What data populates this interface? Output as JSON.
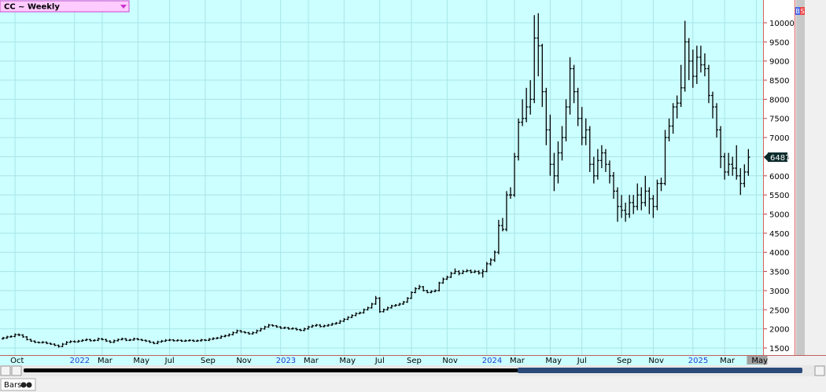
{
  "chart_data": {
    "type": "ohlc",
    "title": "CC ~ Weekly",
    "buttons": [
      "B",
      "S"
    ],
    "bottom_tab": "Bars",
    "grid": true,
    "color": "#000000",
    "ylim": [
      1315,
      10595
    ],
    "yticks": [
      1500,
      2000,
      2500,
      3000,
      3500,
      4000,
      4500,
      5000,
      5500,
      6000,
      6500,
      7000,
      7500,
      8000,
      8500,
      9000,
      9500,
      10000
    ],
    "xlim": [
      -0.79,
      191.7
    ],
    "xticks": [
      {
        "value": 3,
        "label": "Oct"
      },
      {
        "value": 18,
        "label": "2022"
      },
      {
        "value": 25,
        "label": "Mar"
      },
      {
        "value": 34,
        "label": "May"
      },
      {
        "value": 42,
        "label": "Jul"
      },
      {
        "value": 51,
        "label": "Sep"
      },
      {
        "value": 60,
        "label": "Nov"
      },
      {
        "value": 70,
        "label": "2023"
      },
      {
        "value": 77,
        "label": "Mar"
      },
      {
        "value": 86,
        "label": "May"
      },
      {
        "value": 95,
        "label": "Jul"
      },
      {
        "value": 103,
        "label": "Sep"
      },
      {
        "value": 112,
        "label": "Nov"
      },
      {
        "value": 122,
        "label": "2024"
      },
      {
        "value": 129,
        "label": "Mar"
      },
      {
        "value": 138,
        "label": "May"
      },
      {
        "value": 146,
        "label": "Jul"
      },
      {
        "value": 156,
        "label": "Sep"
      },
      {
        "value": 164,
        "label": "Nov"
      },
      {
        "value": 174,
        "label": "2025"
      },
      {
        "value": 182,
        "label": "Mar"
      },
      {
        "value": 190,
        "label": "May"
      }
    ],
    "ohlc": [
      [
        1740,
        1790,
        1720,
        1760
      ],
      [
        1760,
        1820,
        1740,
        1790
      ],
      [
        1790,
        1830,
        1770,
        1800
      ],
      [
        1800,
        1880,
        1780,
        1850
      ],
      [
        1850,
        1880,
        1810,
        1840
      ],
      [
        1840,
        1860,
        1770,
        1790
      ],
      [
        1790,
        1810,
        1700,
        1720
      ],
      [
        1720,
        1740,
        1660,
        1680
      ],
      [
        1680,
        1700,
        1630,
        1650
      ],
      [
        1650,
        1670,
        1620,
        1640
      ],
      [
        1640,
        1680,
        1620,
        1650
      ],
      [
        1650,
        1670,
        1600,
        1620
      ],
      [
        1620,
        1640,
        1580,
        1600
      ],
      [
        1600,
        1620,
        1550,
        1570
      ],
      [
        1570,
        1590,
        1510,
        1540
      ],
      [
        1540,
        1630,
        1520,
        1600
      ],
      [
        1600,
        1680,
        1580,
        1650
      ],
      [
        1650,
        1700,
        1630,
        1670
      ],
      [
        1670,
        1700,
        1640,
        1660
      ],
      [
        1660,
        1710,
        1640,
        1680
      ],
      [
        1680,
        1730,
        1660,
        1700
      ],
      [
        1700,
        1750,
        1680,
        1720
      ],
      [
        1720,
        1740,
        1670,
        1690
      ],
      [
        1690,
        1730,
        1670,
        1700
      ],
      [
        1700,
        1770,
        1680,
        1740
      ],
      [
        1740,
        1760,
        1700,
        1720
      ],
      [
        1720,
        1740,
        1660,
        1680
      ],
      [
        1680,
        1700,
        1630,
        1650
      ],
      [
        1650,
        1720,
        1630,
        1690
      ],
      [
        1690,
        1750,
        1670,
        1720
      ],
      [
        1720,
        1770,
        1700,
        1740
      ],
      [
        1740,
        1760,
        1680,
        1700
      ],
      [
        1700,
        1740,
        1680,
        1710
      ],
      [
        1710,
        1770,
        1690,
        1740
      ],
      [
        1740,
        1760,
        1700,
        1720
      ],
      [
        1720,
        1740,
        1680,
        1700
      ],
      [
        1700,
        1720,
        1660,
        1680
      ],
      [
        1680,
        1700,
        1630,
        1650
      ],
      [
        1650,
        1670,
        1600,
        1620
      ],
      [
        1620,
        1690,
        1600,
        1660
      ],
      [
        1660,
        1710,
        1640,
        1680
      ],
      [
        1680,
        1730,
        1660,
        1700
      ],
      [
        1700,
        1740,
        1680,
        1710
      ],
      [
        1710,
        1730,
        1670,
        1690
      ],
      [
        1690,
        1730,
        1670,
        1700
      ],
      [
        1700,
        1720,
        1660,
        1680
      ],
      [
        1680,
        1720,
        1660,
        1690
      ],
      [
        1690,
        1730,
        1670,
        1700
      ],
      [
        1700,
        1720,
        1660,
        1680
      ],
      [
        1680,
        1720,
        1660,
        1690
      ],
      [
        1690,
        1740,
        1670,
        1710
      ],
      [
        1710,
        1730,
        1680,
        1700
      ],
      [
        1700,
        1760,
        1680,
        1730
      ],
      [
        1730,
        1780,
        1710,
        1750
      ],
      [
        1750,
        1790,
        1730,
        1760
      ],
      [
        1760,
        1830,
        1740,
        1800
      ],
      [
        1800,
        1850,
        1780,
        1820
      ],
      [
        1820,
        1880,
        1800,
        1850
      ],
      [
        1850,
        1930,
        1830,
        1900
      ],
      [
        1900,
        1980,
        1880,
        1950
      ],
      [
        1950,
        1970,
        1900,
        1920
      ],
      [
        1920,
        1940,
        1880,
        1900
      ],
      [
        1900,
        1920,
        1850,
        1870
      ],
      [
        1870,
        1930,
        1850,
        1900
      ],
      [
        1900,
        1980,
        1880,
        1950
      ],
      [
        1950,
        2030,
        1930,
        2000
      ],
      [
        2000,
        2080,
        1980,
        2050
      ],
      [
        2050,
        2130,
        2030,
        2100
      ],
      [
        2100,
        2120,
        2060,
        2080
      ],
      [
        2080,
        2100,
        2030,
        2050
      ],
      [
        2050,
        2070,
        2000,
        2020
      ],
      [
        2020,
        2060,
        2000,
        2030
      ],
      [
        2030,
        2050,
        1980,
        2000
      ],
      [
        2000,
        2040,
        1980,
        2010
      ],
      [
        2010,
        2030,
        1960,
        1980
      ],
      [
        1980,
        2000,
        1940,
        1960
      ],
      [
        1960,
        2030,
        1940,
        2000
      ],
      [
        2000,
        2080,
        1980,
        2050
      ],
      [
        2050,
        2110,
        2030,
        2080
      ],
      [
        2080,
        2130,
        2060,
        2100
      ],
      [
        2100,
        2120,
        2040,
        2060
      ],
      [
        2060,
        2110,
        2040,
        2080
      ],
      [
        2080,
        2130,
        2060,
        2100
      ],
      [
        2100,
        2160,
        2080,
        2130
      ],
      [
        2130,
        2180,
        2110,
        2150
      ],
      [
        2150,
        2230,
        2130,
        2200
      ],
      [
        2200,
        2280,
        2180,
        2250
      ],
      [
        2250,
        2330,
        2230,
        2300
      ],
      [
        2300,
        2380,
        2280,
        2350
      ],
      [
        2350,
        2430,
        2330,
        2400
      ],
      [
        2400,
        2450,
        2380,
        2420
      ],
      [
        2420,
        2530,
        2400,
        2500
      ],
      [
        2500,
        2580,
        2480,
        2550
      ],
      [
        2550,
        2680,
        2530,
        2650
      ],
      [
        2650,
        2860,
        2630,
        2800
      ],
      [
        2800,
        2830,
        2420,
        2450
      ],
      [
        2450,
        2530,
        2430,
        2500
      ],
      [
        2500,
        2580,
        2480,
        2550
      ],
      [
        2550,
        2630,
        2530,
        2600
      ],
      [
        2600,
        2650,
        2580,
        2620
      ],
      [
        2620,
        2680,
        2600,
        2650
      ],
      [
        2650,
        2730,
        2630,
        2700
      ],
      [
        2700,
        2830,
        2680,
        2800
      ],
      [
        2800,
        2980,
        2780,
        2950
      ],
      [
        2950,
        3090,
        2930,
        3050
      ],
      [
        3050,
        3150,
        3030,
        3100
      ],
      [
        3100,
        3120,
        2980,
        3000
      ],
      [
        3000,
        3020,
        2930,
        2950
      ],
      [
        2950,
        3010,
        2930,
        2980
      ],
      [
        2980,
        3030,
        2960,
        3000
      ],
      [
        3000,
        3230,
        2980,
        3200
      ],
      [
        3200,
        3340,
        3180,
        3300
      ],
      [
        3300,
        3390,
        3280,
        3350
      ],
      [
        3350,
        3490,
        3330,
        3450
      ],
      [
        3450,
        3580,
        3430,
        3500
      ],
      [
        3500,
        3530,
        3400,
        3450
      ],
      [
        3450,
        3540,
        3430,
        3500
      ],
      [
        3500,
        3560,
        3480,
        3520
      ],
      [
        3520,
        3550,
        3450,
        3480
      ],
      [
        3480,
        3540,
        3460,
        3500
      ],
      [
        3500,
        3530,
        3420,
        3460
      ],
      [
        3460,
        3560,
        3340,
        3500
      ],
      [
        3500,
        3750,
        3480,
        3700
      ],
      [
        3700,
        3850,
        3650,
        3800
      ],
      [
        3800,
        4050,
        3750,
        4000
      ],
      [
        4000,
        4850,
        3950,
        4700
      ],
      [
        4700,
        4900,
        4550,
        4600
      ],
      [
        4600,
        5600,
        4550,
        5500
      ],
      [
        5500,
        5700,
        5400,
        5500
      ],
      [
        5500,
        6600,
        5450,
        6500
      ],
      [
        6500,
        7500,
        6400,
        7400
      ],
      [
        7400,
        8000,
        7300,
        7500
      ],
      [
        7500,
        8300,
        7400,
        7800
      ],
      [
        7800,
        8500,
        7600,
        8000
      ],
      [
        8000,
        10200,
        7900,
        9600
      ],
      [
        9600,
        10250,
        8600,
        9400
      ],
      [
        9400,
        9450,
        7800,
        8200
      ],
      [
        8200,
        8300,
        6800,
        7200
      ],
      [
        7200,
        7600,
        6000,
        6300
      ],
      [
        6300,
        6600,
        5600,
        6000
      ],
      [
        6000,
        6900,
        5800,
        6600
      ],
      [
        6600,
        7300,
        6400,
        7000
      ],
      [
        7000,
        8000,
        6900,
        7800
      ],
      [
        7800,
        9100,
        7600,
        8800
      ],
      [
        8800,
        8900,
        7900,
        8200
      ],
      [
        8200,
        8300,
        7300,
        7500
      ],
      [
        7500,
        7800,
        6800,
        7000
      ],
      [
        7000,
        7500,
        6800,
        7200
      ],
      [
        7200,
        7300,
        6100,
        6300
      ],
      [
        6300,
        6500,
        5800,
        6000
      ],
      [
        6000,
        6700,
        5900,
        6400
      ],
      [
        6400,
        6800,
        6200,
        6600
      ],
      [
        6600,
        6700,
        6100,
        6300
      ],
      [
        6300,
        6400,
        5800,
        6000
      ],
      [
        6000,
        6100,
        5400,
        5600
      ],
      [
        5600,
        5700,
        4800,
        5200
      ],
      [
        5200,
        5500,
        4900,
        5100
      ],
      [
        5100,
        5300,
        4800,
        5000
      ],
      [
        5000,
        5500,
        4900,
        5300
      ],
      [
        5300,
        5500,
        5000,
        5200
      ],
      [
        5200,
        5800,
        5100,
        5500
      ],
      [
        5500,
        5700,
        5100,
        5300
      ],
      [
        5300,
        6000,
        5200,
        5600
      ],
      [
        5600,
        5700,
        5000,
        5400
      ],
      [
        5400,
        5500,
        4900,
        5200
      ],
      [
        5200,
        5900,
        5100,
        5800
      ],
      [
        5800,
        5950,
        5600,
        5800
      ],
      [
        5800,
        7200,
        5750,
        7000
      ],
      [
        7000,
        7500,
        6900,
        7300
      ],
      [
        7300,
        7900,
        7100,
        7800
      ],
      [
        7800,
        8100,
        7500,
        7900
      ],
      [
        7900,
        8900,
        7800,
        8300
      ],
      [
        8300,
        10050,
        8200,
        9500
      ],
      [
        9500,
        9600,
        8500,
        9000
      ],
      [
        9000,
        9300,
        8300,
        8600
      ],
      [
        8600,
        9400,
        8400,
        9100
      ],
      [
        9100,
        9400,
        8700,
        8900
      ],
      [
        8900,
        9200,
        8600,
        8800
      ],
      [
        8800,
        8900,
        7900,
        8100
      ],
      [
        8100,
        8200,
        7500,
        7800
      ],
      [
        7800,
        7900,
        7000,
        7200
      ],
      [
        7200,
        7300,
        6200,
        6500
      ],
      [
        6500,
        6600,
        5900,
        6100
      ],
      [
        6100,
        6600,
        6000,
        6300
      ],
      [
        6300,
        6500,
        6000,
        6200
      ],
      [
        6200,
        6800,
        5900,
        6000
      ],
      [
        6000,
        6200,
        5500,
        5800
      ],
      [
        5800,
        6300,
        5700,
        6100
      ],
      [
        6100,
        6700,
        6000,
        6487
      ]
    ]
  }
}
